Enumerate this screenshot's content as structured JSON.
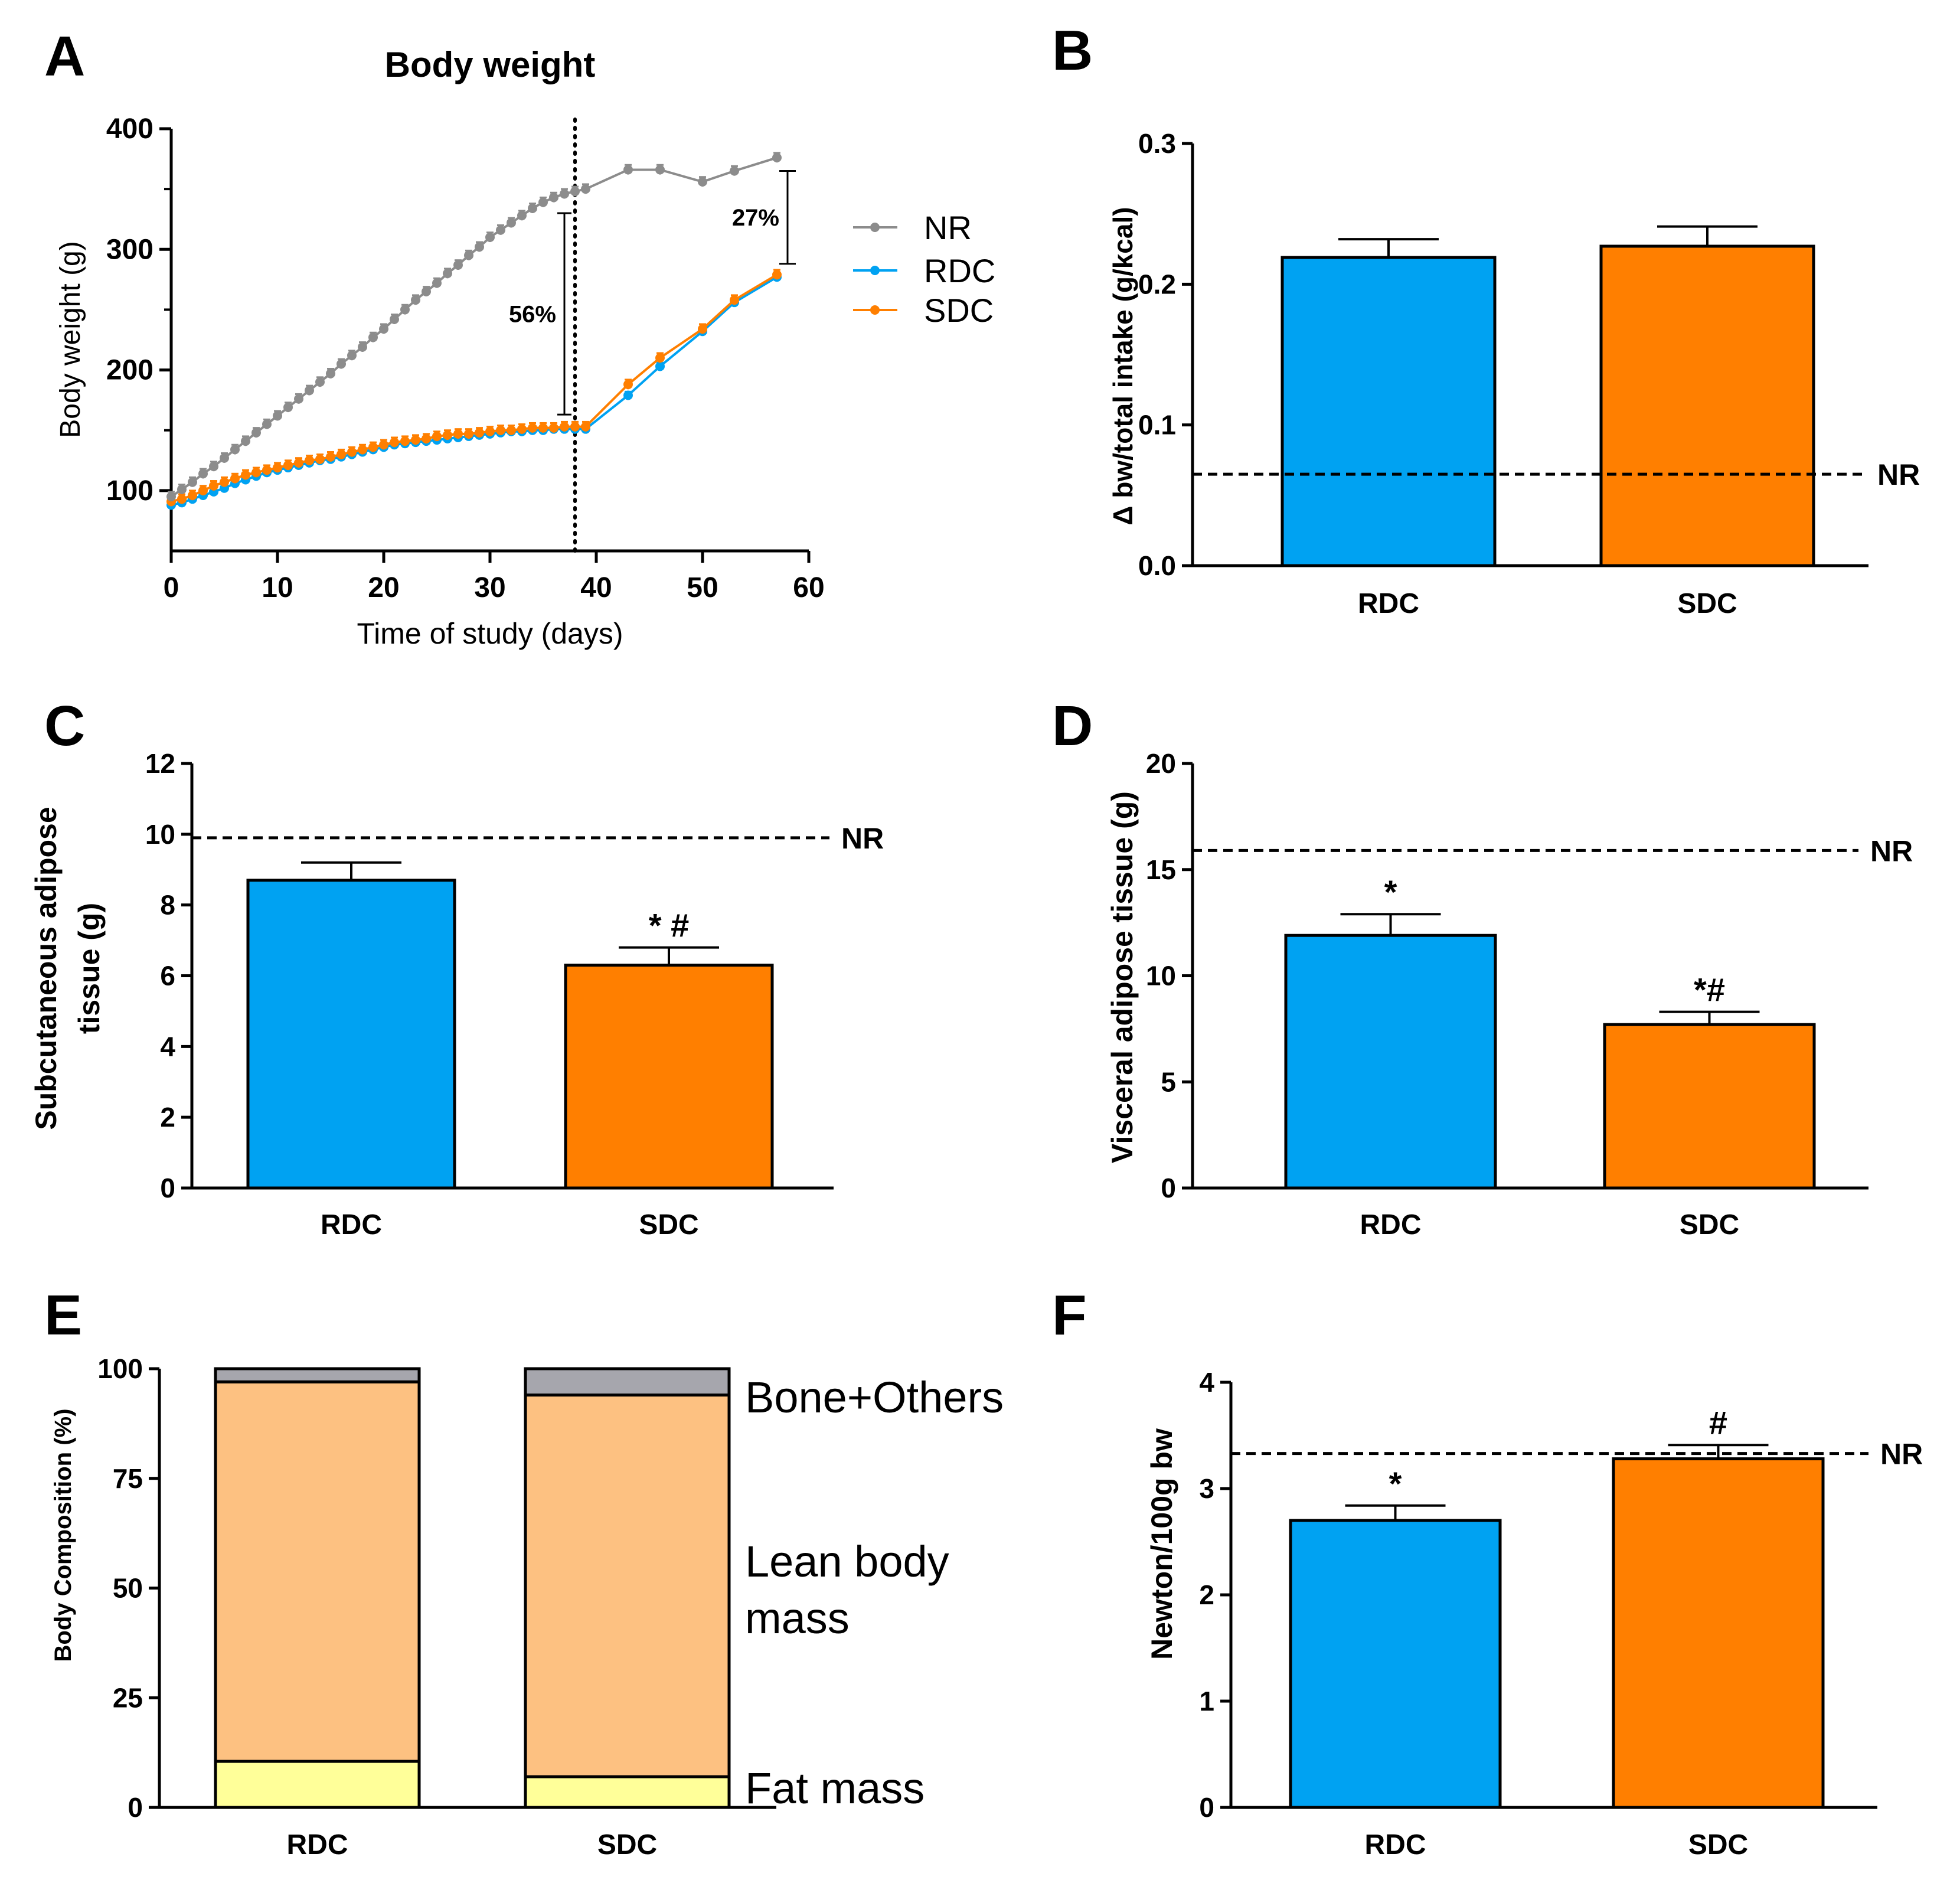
{
  "panels": {
    "A": "A",
    "B": "B",
    "C": "C",
    "D": "D",
    "E": "E",
    "F": "F"
  },
  "colors": {
    "nr": "#8c8c8c",
    "rdc": "#00a2f2",
    "sdc": "#ff7f00",
    "fat": "#ffff99",
    "lean": "#fdc181",
    "bone": "#a6a6ad"
  },
  "chart_data": [
    {
      "id": "A",
      "type": "line",
      "title": "Body weight",
      "xlabel": "Time of study (days)",
      "ylabel": "Body weight (g)",
      "xlim": [
        0,
        60
      ],
      "ylim": [
        50,
        400
      ],
      "xticks": [
        0,
        10,
        20,
        30,
        40,
        50,
        60
      ],
      "yticks": [
        100,
        200,
        300,
        400
      ],
      "vline_x": 38,
      "series": [
        {
          "name": "NR",
          "color_key": "nr",
          "x": [
            0,
            1,
            2,
            3,
            4,
            5,
            6,
            7,
            8,
            9,
            10,
            11,
            12,
            13,
            14,
            15,
            16,
            17,
            18,
            19,
            20,
            21,
            22,
            23,
            24,
            25,
            26,
            27,
            28,
            29,
            30,
            31,
            32,
            33,
            34,
            35,
            36,
            37,
            38,
            39,
            43,
            46,
            50,
            53,
            57
          ],
          "y": [
            95,
            101,
            107,
            114,
            120,
            127,
            134,
            141,
            148,
            155,
            162,
            169,
            176,
            183,
            190,
            197,
            205,
            212,
            219,
            227,
            234,
            242,
            250,
            258,
            265,
            272,
            280,
            287,
            295,
            302,
            310,
            316,
            322,
            328,
            334,
            339,
            343,
            346,
            348,
            350,
            366,
            366,
            356,
            365,
            376
          ],
          "err": 4
        },
        {
          "name": "RDC",
          "color_key": "rdc",
          "x": [
            0,
            1,
            2,
            3,
            4,
            5,
            6,
            7,
            8,
            9,
            10,
            11,
            12,
            13,
            14,
            15,
            16,
            17,
            18,
            19,
            20,
            21,
            22,
            23,
            24,
            25,
            26,
            27,
            28,
            29,
            30,
            31,
            32,
            33,
            34,
            35,
            36,
            37,
            38,
            39,
            43,
            46,
            50,
            53,
            57
          ],
          "y": [
            88,
            90,
            93,
            96,
            99,
            102,
            106,
            109,
            112,
            115,
            117,
            119,
            121,
            123,
            125,
            126,
            128,
            130,
            132,
            134,
            136,
            138,
            139,
            140,
            141,
            142,
            143,
            144,
            145,
            146,
            147,
            148,
            149,
            149,
            150,
            150,
            151,
            151,
            151,
            151,
            179,
            203,
            232,
            256,
            277
          ],
          "err": 3
        },
        {
          "name": "SDC",
          "color_key": "sdc",
          "x": [
            0,
            1,
            2,
            3,
            4,
            5,
            6,
            7,
            8,
            9,
            10,
            11,
            12,
            13,
            14,
            15,
            16,
            17,
            18,
            19,
            20,
            21,
            22,
            23,
            24,
            25,
            26,
            27,
            28,
            29,
            30,
            31,
            32,
            33,
            34,
            35,
            36,
            37,
            38,
            39,
            43,
            46,
            50,
            53,
            57
          ],
          "y": [
            91,
            93,
            96,
            100,
            104,
            107,
            110,
            113,
            115,
            117,
            119,
            121,
            123,
            125,
            126,
            128,
            130,
            132,
            134,
            136,
            138,
            140,
            141,
            142,
            143,
            145,
            146,
            147,
            147,
            148,
            149,
            150,
            150,
            151,
            152,
            152,
            152,
            153,
            153,
            153,
            188,
            210,
            234,
            258,
            279
          ],
          "err": 4
        }
      ],
      "annotations": [
        {
          "label": "56%",
          "x": 37,
          "y_top": 330,
          "y_bottom": 163
        },
        {
          "label": "27%",
          "x": 58,
          "y_top": 365,
          "y_bottom": 288
        }
      ]
    },
    {
      "id": "B",
      "type": "bar",
      "categories": [
        "RDC",
        "SDC"
      ],
      "values": [
        0.219,
        0.227
      ],
      "errors": [
        0.013,
        0.014
      ],
      "ylabel": "Δ bw/total intake (g/kcal)",
      "ylim": [
        0,
        0.3
      ],
      "yticks": [
        "0.0",
        "0.1",
        "0.2",
        "0.3"
      ],
      "reference_line": {
        "label": "NR",
        "value": 0.065
      },
      "significance": [
        "",
        ""
      ]
    },
    {
      "id": "C",
      "type": "bar",
      "categories": [
        "RDC",
        "SDC"
      ],
      "values": [
        8.7,
        6.3
      ],
      "errors": [
        0.5,
        0.5
      ],
      "ylabel": [
        "Subcutaneous adipose",
        "tissue (g)"
      ],
      "ylim": [
        0,
        12
      ],
      "yticks": [
        "0",
        "2",
        "4",
        "6",
        "8",
        "10",
        "12"
      ],
      "reference_line": {
        "label": "NR",
        "value": 9.9
      },
      "significance": [
        "",
        "* #"
      ]
    },
    {
      "id": "D",
      "type": "bar",
      "categories": [
        "RDC",
        "SDC"
      ],
      "values": [
        11.9,
        7.7
      ],
      "errors": [
        1.0,
        0.6
      ],
      "ylabel": "Visceral adipose tissue (g)",
      "ylim": [
        0,
        20
      ],
      "yticks": [
        "0",
        "5",
        "10",
        "15",
        "20"
      ],
      "reference_line": {
        "label": "NR",
        "value": 15.9
      },
      "significance": [
        "*",
        "*#"
      ]
    },
    {
      "id": "E",
      "type": "bar",
      "stacked": true,
      "categories": [
        "RDC",
        "SDC"
      ],
      "ylabel": "Body Composition (%)",
      "ylim": [
        0,
        100
      ],
      "yticks": [
        "0",
        "25",
        "50",
        "75",
        "100"
      ],
      "series": [
        {
          "name": "Fat mass",
          "color_key": "fat",
          "values": [
            10.5,
            7
          ]
        },
        {
          "name": "Lean body mass",
          "color_key": "lean",
          "values": [
            86.5,
            87
          ]
        },
        {
          "name": "Bone+Others",
          "color_key": "bone",
          "values": [
            3,
            6
          ]
        }
      ],
      "segment_labels": {
        "bone": "Bone+Others",
        "lean_line1": "Lean body",
        "lean_line2": "mass",
        "fat": "Fat mass"
      }
    },
    {
      "id": "F",
      "type": "bar",
      "categories": [
        "RDC",
        "SDC"
      ],
      "values": [
        2.7,
        3.28
      ],
      "errors": [
        0.14,
        0.13
      ],
      "ylabel": "Newton/100g bw",
      "ylim": [
        0,
        4
      ],
      "yticks": [
        "0",
        "1",
        "2",
        "3",
        "4"
      ],
      "reference_line": {
        "label": "NR",
        "value": 3.33
      },
      "significance": [
        "*",
        "#"
      ]
    }
  ]
}
